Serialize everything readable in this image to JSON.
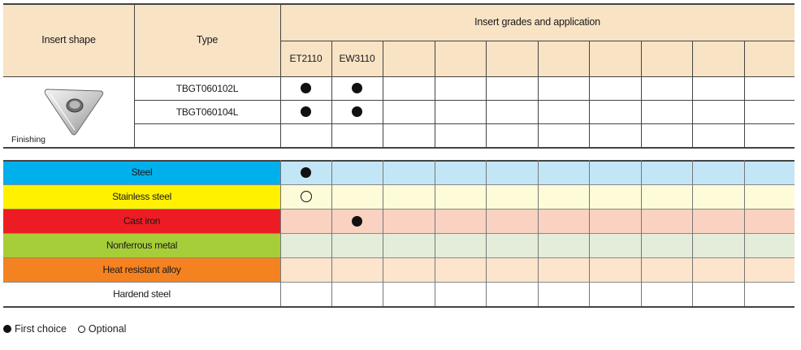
{
  "header": {
    "insert_shape": "Insert shape",
    "type": "Type",
    "grades_title": "Insert grades and application"
  },
  "grades": [
    "ET2110",
    "EW3110",
    "",
    "",
    "",
    "",
    "",
    "",
    "",
    ""
  ],
  "insert": {
    "category": "Finishing",
    "icon": "triangular-insert-icon"
  },
  "types": [
    {
      "name": "TBGT060102L",
      "marks": [
        "first",
        "first"
      ]
    },
    {
      "name": "TBGT060104L",
      "marks": [
        "first",
        "first"
      ]
    },
    {
      "name": "",
      "marks": []
    }
  ],
  "applications": [
    {
      "label": "Steel",
      "label_bg": "#00b0ec",
      "cell_bg": "#c3e6f6",
      "marks": {
        "0": "first"
      }
    },
    {
      "label": "Stainless steel",
      "label_bg": "#fff100",
      "cell_bg": "#fefbd8",
      "marks": {
        "0": "optional"
      }
    },
    {
      "label": "Cast iron",
      "label_bg": "#ed1c24",
      "cell_bg": "#f9d2c2",
      "marks": {
        "1": "first"
      }
    },
    {
      "label": "Nonferrous metal",
      "label_bg": "#a6ce39",
      "cell_bg": "#e4edda",
      "marks": {}
    },
    {
      "label": "Heat resistant alloy",
      "label_bg": "#f58220",
      "cell_bg": "#fde4cd",
      "marks": {}
    },
    {
      "label": "Hardend steel",
      "label_bg": "#ffffff",
      "cell_bg": "#ffffff",
      "marks": {}
    }
  ],
  "legend": {
    "first": "First choice",
    "optional": "Optional"
  }
}
